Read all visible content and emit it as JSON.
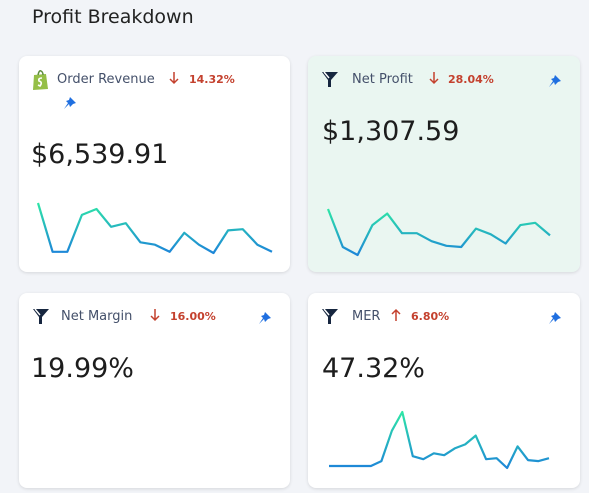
{
  "header": {
    "title": "Profit Breakdown"
  },
  "cards": [
    {
      "name": "Order Revenue",
      "change": "14.32%",
      "direction": "down",
      "value": "$6,539.91",
      "pinned": true,
      "sparkline": [
        45,
        4,
        4,
        35,
        40,
        25,
        28,
        12,
        10,
        4,
        20,
        10,
        3,
        22,
        23,
        10,
        4
      ]
    },
    {
      "name": "Net Profit",
      "change": "28.04%",
      "direction": "down",
      "value": "$1,307.59",
      "pinned": true,
      "sparkline": [
        40,
        7,
        0,
        26,
        36,
        19,
        19,
        12,
        8,
        7,
        23,
        18,
        10,
        26,
        28,
        17
      ]
    },
    {
      "name": "Net Margin",
      "change": "16.00%",
      "direction": "down",
      "value": "19.99%",
      "pinned": true
    },
    {
      "name": "MER",
      "change": "6.80%",
      "direction": "up",
      "value": "47.32%",
      "pinned": true,
      "sparkline": [
        2,
        2,
        2,
        2,
        2,
        7,
        38,
        57,
        12,
        9,
        15,
        13,
        20,
        24,
        33,
        9,
        10,
        0,
        22,
        8,
        7,
        10
      ]
    }
  ]
}
